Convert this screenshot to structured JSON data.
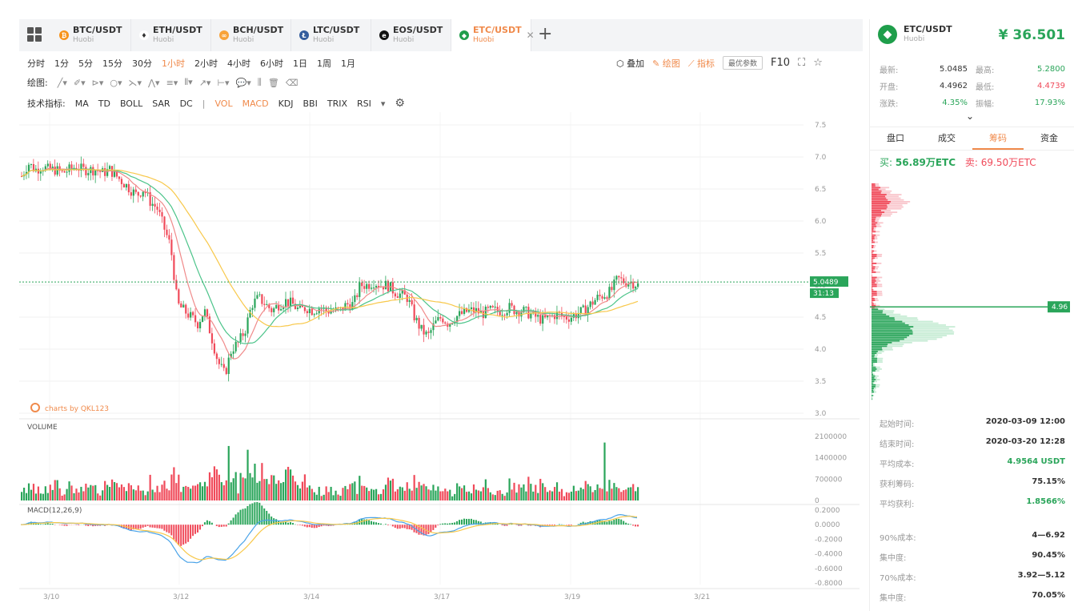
{
  "tabs": [
    {
      "pair": "BTC/USDT",
      "exchange": "Huobi",
      "coin_color": "#f7931a",
      "coin_glyph": "₿",
      "active": false
    },
    {
      "pair": "ETH/USDT",
      "exchange": "Huobi",
      "coin_color": "#ffffff",
      "coin_glyph": "♦",
      "active": false
    },
    {
      "pair": "BCH/USDT",
      "exchange": "Huobi",
      "coin_color": "#f8a33a",
      "coin_glyph": "∞",
      "active": false
    },
    {
      "pair": "LTC/USDT",
      "exchange": "Huobi",
      "coin_color": "#345d9d",
      "coin_glyph": "Ł",
      "active": false
    },
    {
      "pair": "EOS/USDT",
      "exchange": "Huobi",
      "coin_color": "#111111",
      "coin_glyph": "e",
      "active": false
    },
    {
      "pair": "ETC/USDT",
      "exchange": "Huobi",
      "coin_color": "#1f9e4b",
      "coin_glyph": "◆",
      "active": true
    }
  ],
  "intervals": [
    "分时",
    "1分",
    "5分",
    "15分",
    "30分",
    "1小时",
    "2小时",
    "4小时",
    "6小时",
    "1日",
    "1周",
    "1月"
  ],
  "active_interval": "1小时",
  "right_tools": {
    "overlay": "叠加",
    "draw": "绘图",
    "indicator": "指标",
    "optimize": "最优参数",
    "f10": "F10"
  },
  "draw_label": "绘图:",
  "indicator_label": "技术指标:",
  "indicators": [
    "MA",
    "TD",
    "BOLL",
    "SAR",
    "DC",
    "|",
    "VOL",
    "MACD",
    "KDJ",
    "BBI",
    "TRIX",
    "RSI"
  ],
  "active_indicators": [
    "VOL",
    "MACD"
  ],
  "watermark": "charts by QKL123",
  "volume_label": "VOLUME",
  "macd_label": "MACD(12,26,9)",
  "price_axis": [
    "7.5",
    "7.0",
    "6.5",
    "6.0",
    "5.5",
    "5.0",
    "4.5",
    "4.0",
    "3.5",
    "3.0"
  ],
  "volume_axis": [
    "2100000",
    "1400000",
    "700000",
    "0"
  ],
  "macd_axis": [
    "0.2000",
    "0.0000",
    "-0.2000",
    "-0.4000",
    "-0.6000",
    "-0.8000"
  ],
  "x_axis": [
    "3/10",
    "3/12",
    "3/14",
    "3/17",
    "3/19",
    "3/21"
  ],
  "last_price_tag": "5.0489",
  "countdown_tag": "31:13",
  "chip_price_tag": "4.96",
  "panel": {
    "pair": "ETC/USDT",
    "exchange": "Huobi",
    "price": "¥ 36.501",
    "stats": [
      {
        "l1": "最新:",
        "v1": "5.0485",
        "l2": "最高:",
        "v2": "5.2800",
        "c2": "green"
      },
      {
        "l1": "开盘:",
        "v1": "4.4962",
        "l2": "最低:",
        "v2": "4.4739",
        "c2": "red"
      },
      {
        "l1": "涨跌:",
        "v1": "4.35%",
        "l2": "振幅:",
        "v2": "17.93%",
        "c2": "green"
      }
    ],
    "tabs": [
      "盘口",
      "成交",
      "筹码",
      "资金"
    ],
    "active_tab": "筹码",
    "buy_label": "买:",
    "buy_value": "56.89万ETC",
    "sell_label": "卖:",
    "sell_value": "69.50万ETC",
    "info1": [
      {
        "k": "起始时间:",
        "v": "2020-03-09 12:00",
        "c": ""
      },
      {
        "k": "结束时间:",
        "v": "2020-03-20 12:28",
        "c": ""
      },
      {
        "k": "平均成本:",
        "v": "4.9564 USDT",
        "c": "green"
      },
      {
        "k": "获利筹码:",
        "v": "75.15%",
        "c": ""
      },
      {
        "k": "平均获利:",
        "v": "1.8566%",
        "c": "green"
      }
    ],
    "info2": [
      {
        "k": "90%成本:",
        "v": "4—6.92",
        "c": ""
      },
      {
        "k": "集中度:",
        "v": "90.45%",
        "c": ""
      },
      {
        "k": "70%成本:",
        "v": "3.92—5.12",
        "c": ""
      },
      {
        "k": "集中度:",
        "v": "70.05%",
        "c": ""
      }
    ]
  },
  "colors": {
    "up": "#2aa55a",
    "down": "#f04a5a",
    "accent": "#f08a4b",
    "ma1": "#f8c84a",
    "ma2": "#f08a8a",
    "ma3": "#4cc48a"
  },
  "chart_data": {
    "type": "candlestick",
    "price_ylim": [
      3.0,
      7.5
    ],
    "close_path": [
      6.7,
      6.9,
      6.8,
      6.85,
      6.8,
      6.8,
      6.75,
      6.8,
      6.85,
      6.8,
      6.8,
      6.8,
      6.75,
      6.8,
      6.7,
      6.6,
      6.5,
      6.4,
      6.5,
      6.3,
      6.2,
      5.9,
      5.6,
      4.7,
      4.6,
      4.5,
      4.4,
      4.6,
      4.2,
      3.8,
      3.6,
      4.0,
      4.1,
      4.3,
      4.7,
      4.8,
      4.7,
      4.6,
      4.7,
      4.75,
      4.7,
      4.6,
      4.65,
      4.6,
      4.65,
      4.6,
      4.6,
      4.6,
      4.7,
      4.7,
      5.0,
      5.0,
      5.05,
      5.0,
      5.0,
      4.9,
      4.85,
      4.8,
      4.5,
      4.3,
      4.2,
      4.4,
      4.5,
      4.4,
      4.5,
      4.55,
      4.6,
      4.6,
      4.55,
      4.6,
      4.6,
      4.6,
      4.65,
      4.6,
      4.6,
      4.55,
      4.5,
      4.45,
      4.5,
      4.55,
      4.5,
      4.5,
      4.55,
      4.6,
      4.7,
      4.8,
      4.85,
      4.9,
      5.1,
      5.05,
      5.05,
      5.0
    ],
    "volume_ylim": [
      0,
      2100000
    ],
    "macd_ylim": [
      -0.8,
      0.2
    ]
  }
}
